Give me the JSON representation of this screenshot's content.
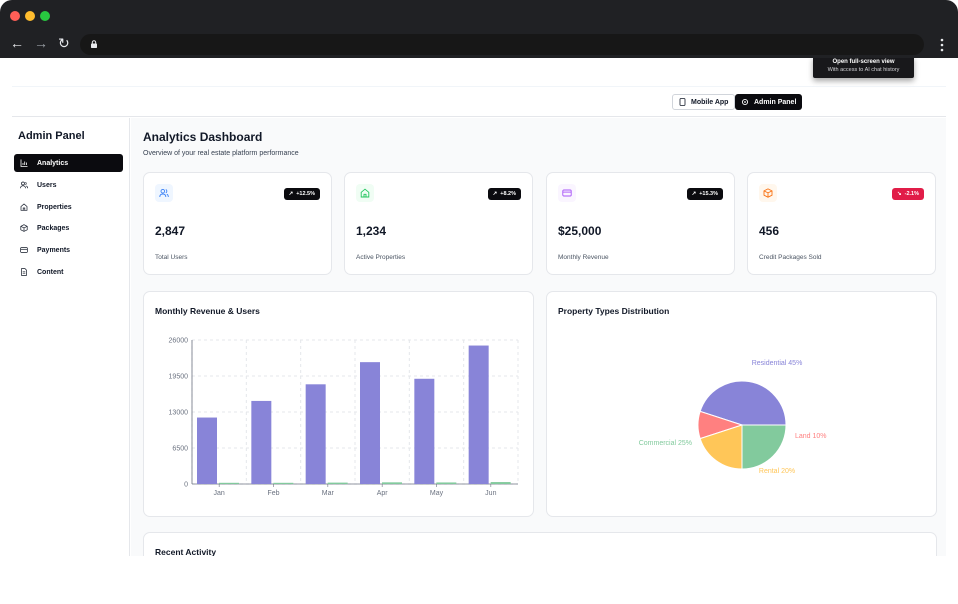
{
  "header": {
    "mobile_app_label": "Mobile App",
    "admin_panel_label": "Admin Panel",
    "tooltip_title": "Open full-screen view",
    "tooltip_subtitle": "With access to AI chat history"
  },
  "sidebar": {
    "title": "Admin Panel",
    "items": [
      {
        "label": "Analytics",
        "icon": "bar-chart-icon",
        "active": true
      },
      {
        "label": "Users",
        "icon": "users-icon",
        "active": false
      },
      {
        "label": "Properties",
        "icon": "home-icon",
        "active": false
      },
      {
        "label": "Packages",
        "icon": "package-icon",
        "active": false
      },
      {
        "label": "Payments",
        "icon": "credit-card-icon",
        "active": false
      },
      {
        "label": "Content",
        "icon": "file-text-icon",
        "active": false
      }
    ]
  },
  "main": {
    "title": "Analytics Dashboard",
    "subtitle": "Overview of your real estate platform performance",
    "stats": [
      {
        "value": "2,847",
        "label": "Total Users",
        "change": "+12.5%",
        "icon": "users-icon",
        "icon_color": "#3b82f6",
        "icon_bg": "#eff6ff",
        "negative": false
      },
      {
        "value": "1,234",
        "label": "Active Properties",
        "change": "+8.2%",
        "icon": "home-icon",
        "icon_color": "#22c55e",
        "icon_bg": "#f0fdf4",
        "negative": false
      },
      {
        "value": "$25,000",
        "label": "Monthly Revenue",
        "change": "+15.3%",
        "icon": "credit-card-icon",
        "icon_color": "#a855f7",
        "icon_bg": "#faf5ff",
        "negative": false
      },
      {
        "value": "456",
        "label": "Credit Packages Sold",
        "change": "-2.1%",
        "icon": "package-icon",
        "icon_color": "#f97316",
        "icon_bg": "#fff7ed",
        "negative": true
      }
    ],
    "revenue_panel_title": "Monthly Revenue & Users",
    "distribution_panel_title": "Property Types Distribution",
    "activity_panel_title": "Recent Activity"
  },
  "chart_data": [
    {
      "type": "bar",
      "categories": [
        "Jan",
        "Feb",
        "Mar",
        "Apr",
        "May",
        "Jun"
      ],
      "series": [
        {
          "values": [
            12000,
            15000,
            18000,
            22000,
            19000,
            25000
          ],
          "color": "#8884d8"
        },
        {
          "values": [
            150,
            200,
            250,
            300,
            280,
            350
          ],
          "color": "#82ca9d"
        }
      ],
      "ylim": [
        0,
        26000
      ],
      "yticks": [
        "0",
        "6500",
        "13000",
        "19500",
        "26000"
      ],
      "grid": true
    },
    {
      "type": "pie",
      "slices": [
        {
          "label": "Residential 45%",
          "value": 45,
          "color": "#8884d8"
        },
        {
          "label": "Land 10%",
          "value": 10,
          "color": "#ff8080"
        },
        {
          "label": "Rental 20%",
          "value": 20,
          "color": "#ffc658"
        },
        {
          "label": "Commercial 25%",
          "value": 25,
          "color": "#82ca9d"
        }
      ]
    }
  ]
}
